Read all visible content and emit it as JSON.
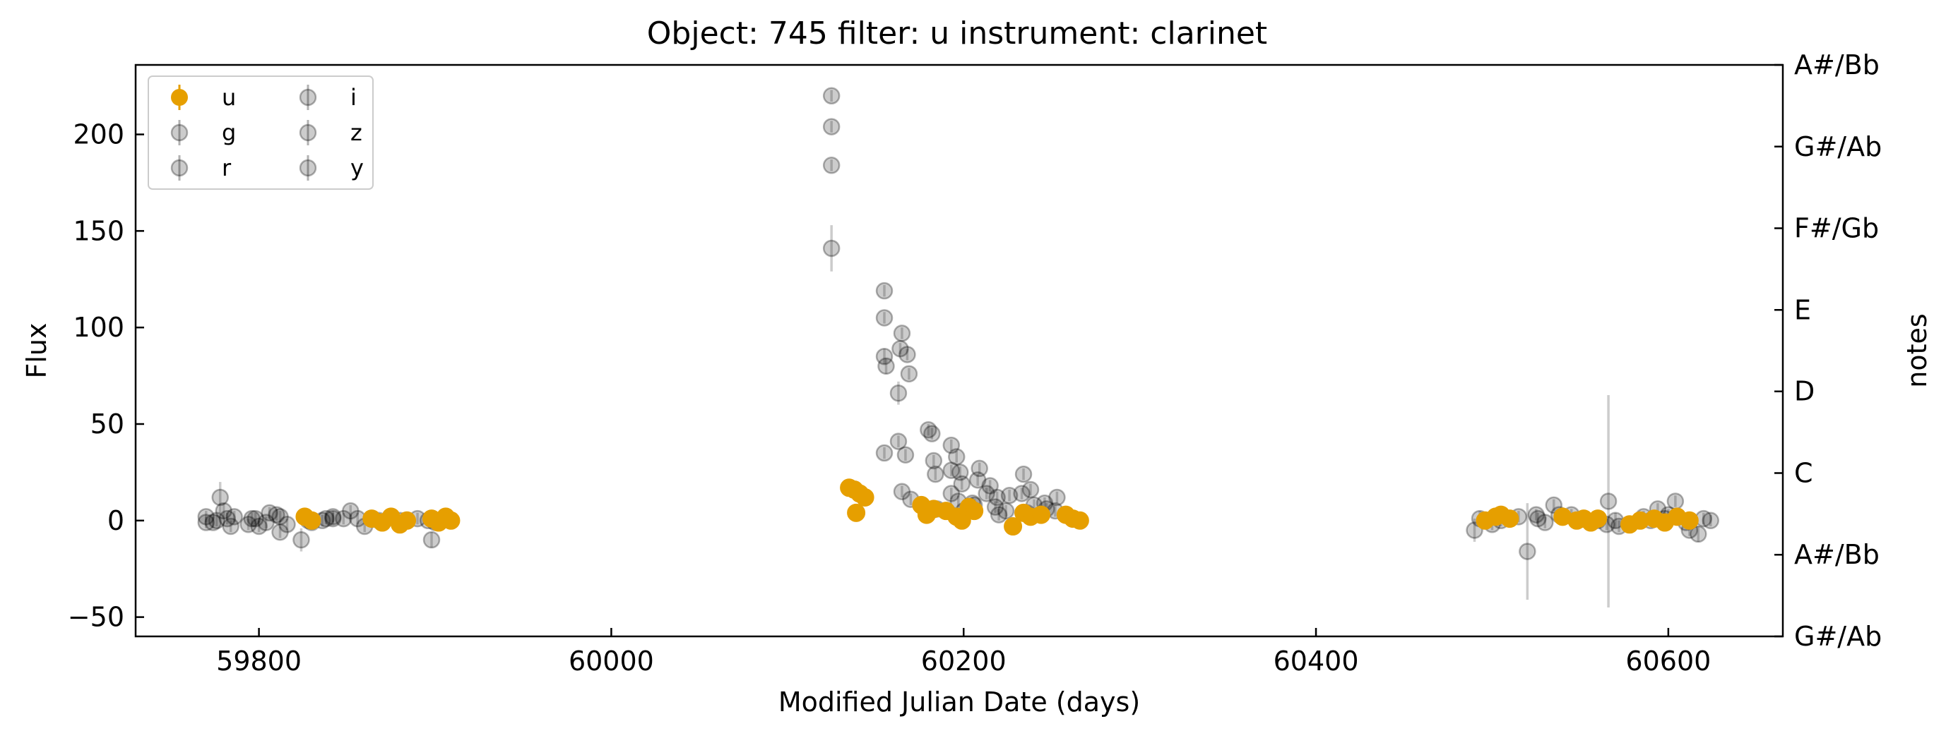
{
  "chart_data": {
    "type": "scatter",
    "title": "Object: 745 filter: u instrument: clarinet",
    "xlabel": "Modified Julian Date (days)",
    "ylabel": "Flux",
    "y2label": "notes",
    "xlim": [
      59730,
      60665
    ],
    "ylim": [
      -60,
      236
    ],
    "xticks": [
      59800,
      60000,
      60200,
      60400,
      60600
    ],
    "yticks": [
      -50,
      0,
      50,
      100,
      150,
      200
    ],
    "y2ticks": [
      {
        "y": -60,
        "label": "G#/Ab"
      },
      {
        "y": -17.7,
        "label": "A#/Bb"
      },
      {
        "y": 24.6,
        "label": "C"
      },
      {
        "y": 66.9,
        "label": "D"
      },
      {
        "y": 109.1,
        "label": "E"
      },
      {
        "y": 151.4,
        "label": "F#/Gb"
      },
      {
        "y": 193.7,
        "label": "G#/Ab"
      },
      {
        "y": 236,
        "label": "A#/Bb"
      }
    ],
    "grid": false,
    "legend": {
      "position": "top-left",
      "columns": 2,
      "entries": [
        "u",
        "g",
        "r",
        "i",
        "z",
        "y"
      ]
    },
    "colors": {
      "highlight": "#E69F00",
      "other": "#000000"
    },
    "series": [
      {
        "name": "u",
        "highlight": true,
        "points": [
          [
            59826,
            2,
            2
          ],
          [
            59830,
            0,
            2
          ],
          [
            59864,
            1,
            2
          ],
          [
            59870,
            -1,
            2
          ],
          [
            59875,
            2,
            2
          ],
          [
            59880,
            -2,
            2
          ],
          [
            59884,
            0,
            2
          ],
          [
            59898,
            1,
            2
          ],
          [
            59902,
            -1,
            2
          ],
          [
            59906,
            2,
            2
          ],
          [
            59909,
            0,
            2
          ],
          [
            60135,
            17,
            2
          ],
          [
            60138,
            16,
            2
          ],
          [
            60141,
            14,
            2
          ],
          [
            60144,
            12,
            2
          ],
          [
            60139,
            4,
            2
          ],
          [
            60176,
            8,
            2
          ],
          [
            60179,
            3,
            2
          ],
          [
            60183,
            6,
            2
          ],
          [
            60190,
            5,
            2
          ],
          [
            60196,
            2,
            2
          ],
          [
            60199,
            0,
            2
          ],
          [
            60203,
            7,
            2
          ],
          [
            60206,
            5,
            2
          ],
          [
            60228,
            -3,
            2
          ],
          [
            60234,
            4,
            2
          ],
          [
            60238,
            2,
            2
          ],
          [
            60244,
            3,
            2
          ],
          [
            60258,
            3,
            2
          ],
          [
            60262,
            1,
            2
          ],
          [
            60266,
            0,
            2
          ],
          [
            60496,
            0,
            2
          ],
          [
            60502,
            2,
            2
          ],
          [
            60505,
            3,
            2
          ],
          [
            60510,
            1,
            2
          ],
          [
            60540,
            2,
            2
          ],
          [
            60548,
            0,
            2
          ],
          [
            60552,
            1,
            2
          ],
          [
            60556,
            -1,
            2
          ],
          [
            60560,
            1,
            2
          ],
          [
            60578,
            -2,
            2
          ],
          [
            60584,
            0,
            2
          ],
          [
            60592,
            1,
            2
          ],
          [
            60598,
            -1,
            2
          ],
          [
            60605,
            2,
            2
          ],
          [
            60612,
            0,
            2
          ]
        ]
      },
      {
        "name": "g",
        "highlight": false,
        "points": [
          [
            59770,
            2,
            3
          ],
          [
            59778,
            12,
            8
          ],
          [
            59784,
            -3,
            3
          ],
          [
            59798,
            1,
            3
          ],
          [
            59806,
            4,
            3
          ],
          [
            59812,
            -6,
            3
          ],
          [
            59824,
            -10,
            6
          ],
          [
            59838,
            1,
            3
          ],
          [
            59852,
            5,
            3
          ],
          [
            59898,
            -10,
            4
          ],
          [
            60125,
            220,
            3
          ],
          [
            60125,
            141,
            12
          ],
          [
            60155,
            119,
            3
          ],
          [
            60156,
            80,
            4
          ],
          [
            60163,
            66,
            6
          ],
          [
            60163,
            41,
            3
          ],
          [
            60167,
            34,
            3
          ],
          [
            60180,
            47,
            3
          ],
          [
            60183,
            31,
            3
          ],
          [
            60193,
            39,
            3
          ],
          [
            60196,
            33,
            3
          ],
          [
            60209,
            27,
            3
          ],
          [
            60213,
            14,
            3
          ],
          [
            60234,
            24,
            3
          ],
          [
            60238,
            16,
            3
          ],
          [
            60252,
            5,
            3
          ],
          [
            60490,
            -5,
            6
          ],
          [
            60520,
            -16,
            25
          ],
          [
            60535,
            8,
            3
          ],
          [
            60566,
            10,
            55
          ],
          [
            60590,
            0,
            3
          ],
          [
            60604,
            10,
            3
          ],
          [
            60617,
            -7,
            4
          ]
        ]
      },
      {
        "name": "r",
        "highlight": false,
        "points": [
          [
            59774,
            -1,
            3
          ],
          [
            59780,
            5,
            4
          ],
          [
            59794,
            -2,
            3
          ],
          [
            59812,
            2,
            3
          ],
          [
            59828,
            0,
            3
          ],
          [
            59848,
            1,
            3
          ],
          [
            59860,
            -3,
            3
          ],
          [
            59896,
            0,
            3
          ],
          [
            60125,
            204,
            3
          ],
          [
            60125,
            184,
            3
          ],
          [
            60155,
            105,
            3
          ],
          [
            60155,
            85,
            4
          ],
          [
            60164,
            89,
            3
          ],
          [
            60165,
            97,
            3
          ],
          [
            60168,
            86,
            3
          ],
          [
            60169,
            76,
            3
          ],
          [
            60182,
            45,
            3
          ],
          [
            60184,
            24,
            3
          ],
          [
            60193,
            26,
            3
          ],
          [
            60199,
            19,
            3
          ],
          [
            60208,
            21,
            3
          ],
          [
            60219,
            12,
            3
          ],
          [
            60233,
            14,
            3
          ],
          [
            60240,
            8,
            3
          ],
          [
            60253,
            12,
            3
          ],
          [
            60493,
            1,
            4
          ],
          [
            60525,
            3,
            3
          ],
          [
            60545,
            3,
            3
          ],
          [
            60570,
            0,
            4
          ],
          [
            60594,
            6,
            3
          ],
          [
            60612,
            -5,
            3
          ]
        ]
      },
      {
        "name": "i",
        "highlight": false,
        "points": [
          [
            59770,
            -1,
            3
          ],
          [
            59786,
            2,
            3
          ],
          [
            59800,
            -3,
            3
          ],
          [
            59810,
            3,
            3
          ],
          [
            59830,
            -1,
            3
          ],
          [
            59842,
            2,
            3
          ],
          [
            59868,
            0,
            3
          ],
          [
            59890,
            1,
            3
          ],
          [
            60155,
            35,
            3
          ],
          [
            60165,
            15,
            3
          ],
          [
            60170,
            11,
            3
          ],
          [
            60185,
            6,
            3
          ],
          [
            60193,
            14,
            3
          ],
          [
            60198,
            25,
            3
          ],
          [
            60205,
            9,
            3
          ],
          [
            60218,
            7,
            3
          ],
          [
            60226,
            13,
            3
          ],
          [
            60247,
            6,
            3
          ],
          [
            60500,
            -2,
            3
          ],
          [
            60526,
            1,
            3
          ],
          [
            60538,
            3,
            3
          ],
          [
            60572,
            -3,
            3
          ],
          [
            60600,
            3,
            3
          ],
          [
            60620,
            1,
            3
          ]
        ]
      },
      {
        "name": "z",
        "highlight": false,
        "points": [
          [
            59776,
            0,
            3
          ],
          [
            59796,
            1,
            3
          ],
          [
            59816,
            -2,
            3
          ],
          [
            59836,
            0,
            3
          ],
          [
            59856,
            1,
            3
          ],
          [
            59900,
            -1,
            3
          ],
          [
            60197,
            10,
            3
          ],
          [
            60206,
            8,
            3
          ],
          [
            60215,
            18,
            3
          ],
          [
            60224,
            5,
            3
          ],
          [
            60246,
            9,
            3
          ],
          [
            60505,
            0,
            3
          ],
          [
            60530,
            -1,
            3
          ],
          [
            60560,
            0,
            3
          ],
          [
            60586,
            2,
            3
          ],
          [
            60610,
            -1,
            3
          ]
        ]
      },
      {
        "name": "y",
        "highlight": false,
        "points": [
          [
            59782,
            1,
            3
          ],
          [
            59804,
            -1,
            3
          ],
          [
            59842,
            1,
            3
          ],
          [
            59880,
            0,
            3
          ],
          [
            60200,
            5,
            3
          ],
          [
            60220,
            3,
            3
          ],
          [
            60236,
            4,
            3
          ],
          [
            60515,
            2,
            3
          ],
          [
            60565,
            -2,
            3
          ],
          [
            60598,
            1,
            3
          ],
          [
            60624,
            0,
            3
          ]
        ]
      }
    ]
  }
}
